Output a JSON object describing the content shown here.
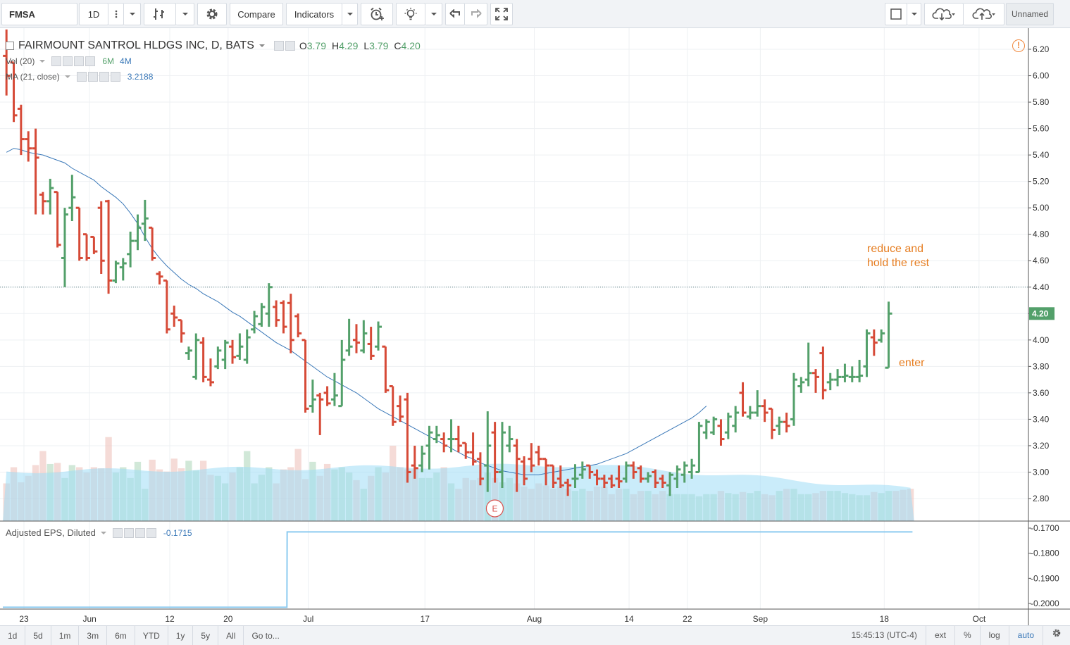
{
  "toolbar": {
    "symbol": "FMSA",
    "interval": "1D",
    "compare_label": "Compare",
    "indicators_label": "Indicators",
    "layout_name": "Unnamed"
  },
  "legend": {
    "title": "FAIRMOUNT SANTROL HLDGS INC, D, BATS",
    "open_label": "O",
    "open": "3.79",
    "high_label": "H",
    "high": "4.29",
    "low_label": "L",
    "low": "3.79",
    "close_label": "C",
    "close": "4.20",
    "vol_title": "Vol (20)",
    "vol_value1": "6M",
    "vol_value2": "4M",
    "ma_title": "MA (21, close)",
    "ma_value": "3.2188",
    "eps_title": "Adjusted EPS, Diluted",
    "eps_value": "-0.1715"
  },
  "price_axis": {
    "labels": [
      "6.20",
      "6.00",
      "5.80",
      "5.60",
      "5.40",
      "5.20",
      "5.00",
      "4.80",
      "4.60",
      "4.40",
      "4.20",
      "4.00",
      "3.80",
      "3.60",
      "3.40",
      "3.20",
      "3.00",
      "2.80"
    ],
    "last_price": "4.20"
  },
  "eps_axis": {
    "labels": [
      "-0.1700",
      "-0.1800",
      "-0.1900",
      "-0.2000"
    ]
  },
  "time_axis": {
    "labels": [
      {
        "text": "23",
        "day": 0
      },
      {
        "text": "Jun",
        "day": 9
      },
      {
        "text": "12",
        "day": 20
      },
      {
        "text": "20",
        "day": 28
      },
      {
        "text": "Jul",
        "day": 39
      },
      {
        "text": "17",
        "day": 55
      },
      {
        "text": "Aug",
        "day": 70
      },
      {
        "text": "14",
        "day": 83
      },
      {
        "text": "22",
        "day": 91
      },
      {
        "text": "Sep",
        "day": 101
      },
      {
        "text": "18",
        "day": 118
      },
      {
        "text": "Oct",
        "day": 131
      }
    ]
  },
  "annotations": {
    "reduce": [
      "reduce and",
      "hold the rest"
    ],
    "enter": "enter",
    "earnings_marker": "E"
  },
  "bottom": {
    "ranges": [
      "1d",
      "5d",
      "1m",
      "3m",
      "6m",
      "YTD",
      "1y",
      "5y",
      "All"
    ],
    "goto_label": "Go to...",
    "time": "15:45:13 (UTC-4)",
    "ext": "ext",
    "pct": "%",
    "log": "log",
    "auto": "auto"
  },
  "colors": {
    "up": "#53a06a",
    "down": "#d64a37",
    "ma": "#3a78b8",
    "volume_ma_fill": "#9fdcf5",
    "eps_line": "#8ccbf0",
    "annotation": "#e67e22"
  },
  "chart_data": {
    "type": "ohlc",
    "symbol": "FMSA",
    "ylim": [
      2.7,
      6.25
    ],
    "bars": [
      {
        "o": 6.15,
        "h": 6.35,
        "l": 5.85,
        "c": 6.0
      },
      {
        "o": 6.1,
        "h": 6.1,
        "l": 5.65,
        "c": 5.7
      },
      {
        "o": 5.75,
        "h": 5.78,
        "l": 5.4,
        "c": 5.52
      },
      {
        "o": 5.52,
        "h": 5.58,
        "l": 5.35,
        "c": 5.45
      },
      {
        "o": 5.45,
        "h": 5.6,
        "l": 4.95,
        "c": 5.38
      },
      {
        "o": 5.1,
        "h": 5.12,
        "l": 4.95,
        "c": 5.05
      },
      {
        "o": 5.05,
        "h": 5.22,
        "l": 4.95,
        "c": 5.15
      },
      {
        "o": 5.12,
        "h": 5.12,
        "l": 4.7,
        "c": 4.72
      },
      {
        "o": 4.62,
        "h": 5.0,
        "l": 4.4,
        "c": 4.95
      },
      {
        "o": 5.0,
        "h": 5.25,
        "l": 4.9,
        "c": 5.08
      },
      {
        "o": 5.0,
        "h": 5.0,
        "l": 4.6,
        "c": 4.62
      },
      {
        "o": 4.8,
        "h": 4.8,
        "l": 4.6,
        "c": 4.62
      },
      {
        "o": 4.78,
        "h": 4.78,
        "l": 4.65,
        "c": 4.67
      },
      {
        "o": 5.0,
        "h": 5.05,
        "l": 4.5,
        "c": 4.6
      },
      {
        "o": 5.05,
        "h": 5.06,
        "l": 4.35,
        "c": 4.45
      },
      {
        "o": 4.45,
        "h": 4.6,
        "l": 4.43,
        "c": 4.58
      },
      {
        "o": 4.55,
        "h": 4.62,
        "l": 4.45,
        "c": 4.58
      },
      {
        "o": 4.65,
        "h": 4.82,
        "l": 4.55,
        "c": 4.75
      },
      {
        "o": 4.75,
        "h": 4.95,
        "l": 4.68,
        "c": 4.85
      },
      {
        "o": 4.88,
        "h": 5.06,
        "l": 4.75,
        "c": 4.92
      },
      {
        "o": 4.85,
        "h": 4.85,
        "l": 4.6,
        "c": 4.62
      },
      {
        "o": 4.5,
        "h": 4.52,
        "l": 4.42,
        "c": 4.48
      },
      {
        "o": 4.45,
        "h": 4.45,
        "l": 4.05,
        "c": 4.08
      },
      {
        "o": 4.2,
        "h": 4.26,
        "l": 4.1,
        "c": 4.17
      },
      {
        "o": 4.15,
        "h": 4.15,
        "l": 3.98,
        "c": 4.05
      },
      {
        "o": 3.9,
        "h": 3.95,
        "l": 3.85,
        "c": 3.92
      },
      {
        "o": 3.72,
        "h": 4.05,
        "l": 3.7,
        "c": 4.0
      },
      {
        "o": 3.98,
        "h": 4.02,
        "l": 3.68,
        "c": 3.72
      },
      {
        "o": 3.7,
        "h": 3.86,
        "l": 3.65,
        "c": 3.68
      },
      {
        "o": 3.8,
        "h": 3.95,
        "l": 3.78,
        "c": 3.92
      },
      {
        "o": 3.85,
        "h": 4.0,
        "l": 3.78,
        "c": 3.98
      },
      {
        "o": 3.95,
        "h": 4.0,
        "l": 3.82,
        "c": 3.87
      },
      {
        "o": 3.88,
        "h": 4.05,
        "l": 3.85,
        "c": 3.95
      },
      {
        "o": 3.85,
        "h": 4.08,
        "l": 3.82,
        "c": 4.02
      },
      {
        "o": 4.08,
        "h": 4.22,
        "l": 4.05,
        "c": 4.18
      },
      {
        "o": 4.12,
        "h": 4.28,
        "l": 4.1,
        "c": 4.25
      },
      {
        "o": 4.2,
        "h": 4.43,
        "l": 4.1,
        "c": 4.4
      },
      {
        "o": 4.25,
        "h": 4.3,
        "l": 4.1,
        "c": 4.15
      },
      {
        "o": 4.28,
        "h": 4.3,
        "l": 4.05,
        "c": 4.1
      },
      {
        "o": 4.28,
        "h": 4.35,
        "l": 3.9,
        "c": 4.0
      },
      {
        "o": 4.18,
        "h": 4.2,
        "l": 4.02,
        "c": 4.05
      },
      {
        "o": 4.0,
        "h": 4.0,
        "l": 3.45,
        "c": 3.48
      },
      {
        "o": 3.5,
        "h": 3.7,
        "l": 3.45,
        "c": 3.55
      },
      {
        "o": 3.58,
        "h": 3.6,
        "l": 3.28,
        "c": 3.55
      },
      {
        "o": 3.6,
        "h": 3.65,
        "l": 3.5,
        "c": 3.52
      },
      {
        "o": 3.55,
        "h": 3.75,
        "l": 3.5,
        "c": 3.58
      },
      {
        "o": 3.5,
        "h": 4.0,
        "l": 3.5,
        "c": 3.85
      },
      {
        "o": 3.92,
        "h": 4.16,
        "l": 3.88,
        "c": 3.95
      },
      {
        "o": 4.0,
        "h": 4.12,
        "l": 3.9,
        "c": 3.98
      },
      {
        "o": 3.92,
        "h": 4.15,
        "l": 3.9,
        "c": 4.05
      },
      {
        "o": 3.97,
        "h": 4.1,
        "l": 3.85,
        "c": 3.88
      },
      {
        "o": 3.95,
        "h": 4.14,
        "l": 3.92,
        "c": 4.1
      },
      {
        "o": 3.95,
        "h": 3.95,
        "l": 3.6,
        "c": 3.62
      },
      {
        "o": 3.65,
        "h": 3.65,
        "l": 3.35,
        "c": 3.38
      },
      {
        "o": 3.5,
        "h": 3.58,
        "l": 3.38,
        "c": 3.42
      },
      {
        "o": 3.55,
        "h": 3.6,
        "l": 2.92,
        "c": 3.0
      },
      {
        "o": 3.05,
        "h": 3.2,
        "l": 2.95,
        "c": 3.03
      },
      {
        "o": 3.05,
        "h": 3.2,
        "l": 3.0,
        "c": 3.14
      },
      {
        "o": 3.2,
        "h": 3.35,
        "l": 3.02,
        "c": 3.3
      },
      {
        "o": 3.25,
        "h": 3.35,
        "l": 3.22,
        "c": 3.28
      },
      {
        "o": 3.25,
        "h": 3.3,
        "l": 3.15,
        "c": 3.2
      },
      {
        "o": 3.25,
        "h": 3.4,
        "l": 3.15,
        "c": 3.25
      },
      {
        "o": 3.25,
        "h": 3.35,
        "l": 3.15,
        "c": 3.2
      },
      {
        "o": 3.22,
        "h": 3.22,
        "l": 3.1,
        "c": 3.15
      },
      {
        "o": 3.15,
        "h": 3.3,
        "l": 3.05,
        "c": 3.08
      },
      {
        "o": 3.1,
        "h": 3.15,
        "l": 2.9,
        "c": 2.95
      },
      {
        "o": 3.05,
        "h": 3.46,
        "l": 2.85,
        "c": 3.2
      },
      {
        "o": 3.3,
        "h": 3.38,
        "l": 2.92,
        "c": 3.0
      },
      {
        "o": 3.0,
        "h": 3.38,
        "l": 2.88,
        "c": 3.3
      },
      {
        "o": 3.2,
        "h": 3.35,
        "l": 3.15,
        "c": 3.25
      },
      {
        "o": 3.2,
        "h": 3.25,
        "l": 2.85,
        "c": 3.1
      },
      {
        "o": 3.08,
        "h": 3.12,
        "l": 2.9,
        "c": 2.95
      },
      {
        "o": 3.1,
        "h": 3.22,
        "l": 3.0,
        "c": 3.05
      },
      {
        "o": 3.15,
        "h": 3.2,
        "l": 3.05,
        "c": 3.1
      },
      {
        "o": 3.1,
        "h": 3.1,
        "l": 2.9,
        "c": 3.05
      },
      {
        "o": 3.05,
        "h": 3.05,
        "l": 2.88,
        "c": 2.92
      },
      {
        "o": 2.95,
        "h": 3.05,
        "l": 2.88,
        "c": 2.9
      },
      {
        "o": 2.92,
        "h": 2.95,
        "l": 2.82,
        "c": 2.9
      },
      {
        "o": 2.95,
        "h": 3.06,
        "l": 2.88,
        "c": 2.95
      },
      {
        "o": 2.98,
        "h": 3.08,
        "l": 2.95,
        "c": 3.02
      },
      {
        "o": 3.05,
        "h": 3.05,
        "l": 2.95,
        "c": 3.0
      },
      {
        "o": 2.98,
        "h": 3.02,
        "l": 2.9,
        "c": 2.95
      },
      {
        "o": 2.95,
        "h": 2.98,
        "l": 2.88,
        "c": 2.92
      },
      {
        "o": 2.95,
        "h": 2.98,
        "l": 2.88,
        "c": 2.9
      },
      {
        "o": 2.95,
        "h": 3.05,
        "l": 2.88,
        "c": 2.93
      },
      {
        "o": 2.95,
        "h": 3.08,
        "l": 2.92,
        "c": 3.05
      },
      {
        "o": 3.05,
        "h": 3.08,
        "l": 2.95,
        "c": 3.0
      },
      {
        "o": 3.03,
        "h": 3.05,
        "l": 2.92,
        "c": 2.95
      },
      {
        "o": 2.95,
        "h": 3.0,
        "l": 2.92,
        "c": 2.97
      },
      {
        "o": 3.0,
        "h": 3.02,
        "l": 2.88,
        "c": 2.92
      },
      {
        "o": 2.95,
        "h": 2.98,
        "l": 2.88,
        "c": 2.92
      },
      {
        "o": 2.9,
        "h": 3.0,
        "l": 2.82,
        "c": 2.98
      },
      {
        "o": 2.95,
        "h": 3.05,
        "l": 2.88,
        "c": 3.02
      },
      {
        "o": 2.98,
        "h": 3.08,
        "l": 2.92,
        "c": 3.05
      },
      {
        "o": 3.0,
        "h": 3.1,
        "l": 2.95,
        "c": 3.05
      },
      {
        "o": 3.0,
        "h": 3.38,
        "l": 3.0,
        "c": 3.35
      },
      {
        "o": 3.3,
        "h": 3.4,
        "l": 3.25,
        "c": 3.38
      },
      {
        "o": 3.3,
        "h": 3.42,
        "l": 3.28,
        "c": 3.4
      },
      {
        "o": 3.35,
        "h": 3.4,
        "l": 3.2,
        "c": 3.25
      },
      {
        "o": 3.3,
        "h": 3.45,
        "l": 3.25,
        "c": 3.42
      },
      {
        "o": 3.35,
        "h": 3.5,
        "l": 3.3,
        "c": 3.45
      },
      {
        "o": 3.6,
        "h": 3.68,
        "l": 3.42,
        "c": 3.45
      },
      {
        "o": 3.42,
        "h": 3.5,
        "l": 3.4,
        "c": 3.45
      },
      {
        "o": 3.45,
        "h": 3.62,
        "l": 3.42,
        "c": 3.5
      },
      {
        "o": 3.5,
        "h": 3.55,
        "l": 3.38,
        "c": 3.45
      },
      {
        "o": 3.48,
        "h": 3.48,
        "l": 3.25,
        "c": 3.32
      },
      {
        "o": 3.35,
        "h": 3.42,
        "l": 3.28,
        "c": 3.38
      },
      {
        "o": 3.38,
        "h": 3.45,
        "l": 3.3,
        "c": 3.35
      },
      {
        "o": 3.4,
        "h": 3.75,
        "l": 3.35,
        "c": 3.7
      },
      {
        "o": 3.65,
        "h": 3.72,
        "l": 3.6,
        "c": 3.68
      },
      {
        "o": 3.7,
        "h": 3.98,
        "l": 3.65,
        "c": 3.75
      },
      {
        "o": 3.75,
        "h": 3.78,
        "l": 3.6,
        "c": 3.72
      },
      {
        "o": 3.9,
        "h": 3.95,
        "l": 3.55,
        "c": 3.62
      },
      {
        "o": 3.68,
        "h": 3.75,
        "l": 3.62,
        "c": 3.7
      },
      {
        "o": 3.7,
        "h": 3.78,
        "l": 3.65,
        "c": 3.72
      },
      {
        "o": 3.72,
        "h": 3.82,
        "l": 3.68,
        "c": 3.73
      },
      {
        "o": 3.72,
        "h": 3.8,
        "l": 3.68,
        "c": 3.72
      },
      {
        "o": 3.72,
        "h": 3.85,
        "l": 3.68,
        "c": 3.73
      },
      {
        "o": 3.8,
        "h": 4.08,
        "l": 3.72,
        "c": 4.05
      },
      {
        "o": 4.02,
        "h": 4.08,
        "l": 3.88,
        "c": 3.98
      },
      {
        "o": 4.0,
        "h": 4.08,
        "l": 3.98,
        "c": 4.05
      },
      {
        "o": 3.79,
        "h": 4.29,
        "l": 3.79,
        "c": 4.2
      }
    ],
    "ma21": [
      5.42,
      5.45,
      5.44,
      5.42,
      5.41,
      5.4,
      5.38,
      5.36,
      5.34,
      5.3,
      5.27,
      5.24,
      5.21,
      5.16,
      5.12,
      5.08,
      5.03,
      4.96,
      4.88,
      4.78,
      4.69,
      4.62,
      4.56,
      4.51,
      4.46,
      4.42,
      4.39,
      4.35,
      4.32,
      4.29,
      4.25,
      4.21,
      4.18,
      4.14,
      4.1,
      4.06,
      4.02,
      3.98,
      3.95,
      3.92,
      3.88,
      3.84,
      3.8,
      3.76,
      3.72,
      3.69,
      3.66,
      3.63,
      3.6,
      3.56,
      3.52,
      3.48,
      3.45,
      3.42,
      3.39,
      3.36,
      3.33,
      3.3,
      3.27,
      3.24,
      3.21,
      3.18,
      3.15,
      3.12,
      3.1,
      3.07,
      3.05,
      3.03,
      3.01,
      3.0,
      2.99,
      2.98,
      2.98,
      2.98,
      2.99,
      3.0,
      3.01,
      3.02,
      3.03,
      3.04,
      3.05,
      3.06,
      3.08,
      3.1,
      3.12,
      3.14,
      3.17,
      3.2,
      3.23,
      3.26,
      3.29,
      3.32,
      3.35,
      3.38,
      3.41,
      3.45,
      3.5
    ],
    "ma21_start_day": 0,
    "volume": [
      3.5,
      5.0,
      3.6,
      4.2,
      5.2,
      6.5,
      5.3,
      5.4,
      4.0,
      5.2,
      5.0,
      4.5,
      5.0,
      4.9,
      7.8,
      4.5,
      5.0,
      4.0,
      5.5,
      3.0,
      5.7,
      4.8,
      4.6,
      5.8,
      4.9,
      5.6,
      4.7,
      5.6,
      4.3,
      4.2,
      3.5,
      4.5,
      5.0,
      6.5,
      3.5,
      4.3,
      5.0,
      3.5,
      4.8,
      5.0,
      6.7,
      3.9,
      5.5,
      4.2,
      5.3,
      4.8,
      5.0,
      4.5,
      3.8,
      3.0,
      4.2,
      5.0,
      4.5,
      7.0,
      5.0,
      4.8,
      4.8,
      4.0,
      4.0,
      4.5,
      5.0,
      3.5,
      3.0,
      4.0,
      3.8,
      4.0,
      4.5,
      4.0,
      3.6,
      4.0,
      3.5,
      3.2,
      3.0,
      3.5,
      3.3,
      3.0,
      3.2,
      3.0,
      2.8,
      3.0,
      2.8,
      3.2,
      3.2,
      2.5,
      3.0,
      3.0,
      2.5,
      2.8,
      2.8,
      2.5,
      2.8,
      2.5,
      2.5,
      2.5,
      2.5,
      2.3,
      2.5,
      2.5,
      2.8,
      2.6,
      2.5,
      2.7,
      2.6,
      2.8,
      2.5,
      2.4,
      2.8,
      3.0,
      3.0,
      2.5,
      2.5,
      2.6,
      2.8,
      2.8,
      2.8,
      2.6,
      2.5,
      2.4,
      2.4,
      2.7,
      2.6,
      2.8,
      2.8,
      2.9,
      3.0
    ],
    "volume_ma_approx": 4.6,
    "eps_series": [
      {
        "from_day": 0,
        "to_day": 38,
        "value": -0.2015
      },
      {
        "from_day": 39,
        "to_day": 124,
        "value": -0.1715
      }
    ],
    "eps_ylim": [
      -0.204,
      -0.169
    ],
    "horizontal_line": 4.4,
    "eps_marker_day": 67,
    "xlabel": "",
    "ylabel": ""
  }
}
